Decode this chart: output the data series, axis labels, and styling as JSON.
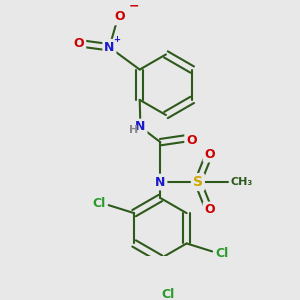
{
  "bg_color": "#e8e8e8",
  "bond_color": "#2d5a1b",
  "bond_width": 1.5,
  "atom_colors": {
    "N": "#1a1acc",
    "O": "#cc0000",
    "S": "#ccaa00",
    "Cl": "#2a9a2a",
    "H": "#888888",
    "C": "#2d5a1b"
  }
}
